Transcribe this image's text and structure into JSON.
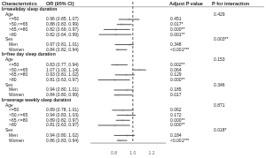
{
  "chart_data": {
    "type": "forest",
    "columns": [
      "Characteristics",
      "OR (95% CI)",
      "Adjust P value",
      "P for interaction"
    ],
    "sections": [
      {
        "header": "b=weekday sleep duration",
        "groups": [
          {
            "name": "Age",
            "p_interaction": "0.429",
            "categories": [
              "<=50",
              ">50,<=65",
              ">65,<=80",
              ">80"
            ],
            "values": [
              0.96,
              0.88,
              0.82,
              0.82
            ],
            "ci_lo": [
              0.85,
              0.83,
              0.69,
              0.64
            ],
            "ci_hi": [
              1.07,
              0.988,
              0.97,
              0.986
            ],
            "value_labels": [
              "0.96 (0.85, 1.07)",
              "0.88 (0.83, 0.99)",
              "0.82 (0.69, 0.97)",
              "0.82 (0.64, 0.99)"
            ],
            "p_values": [
              "0.451",
              "0.017*",
              "0.000**",
              "0.001**"
            ]
          },
          {
            "name": "Sex",
            "p_interaction": "0.003**",
            "categories": [
              "Men",
              "Women"
            ],
            "values": [
              0.97,
              0.84
            ],
            "ci_lo": [
              0.81,
              0.82
            ],
            "ci_hi": [
              1.01,
              0.94
            ],
            "value_labels": [
              "0.97 (0.81, 1.01)",
              "0.84 (0.82, 0.94)"
            ],
            "p_values": [
              "0.348",
              "<0.001***"
            ]
          }
        ]
      },
      {
        "header": "b=free day sleep duration",
        "groups": [
          {
            "name": "Age",
            "p_interaction": "0.153",
            "categories": [
              "<=50",
              ">50,<=65",
              ">65,<=80",
              ">80"
            ],
            "values": [
              0.83,
              1.07,
              0.93,
              0.81
            ],
            "ci_lo": [
              0.77,
              1.0,
              0.81,
              0.63
            ],
            "ci_hi": [
              0.944,
              1.14,
              1.02,
              0.97
            ],
            "value_labels": [
              "0.83 (0.77, 0.94)",
              "1.07 (1.00, 1.14)",
              "0.93 (0.81, 1.02)",
              "0.81 (0.63, 0.97)"
            ],
            "p_values": [
              "0.002**",
              "0.064",
              "0.129",
              "0.000**"
            ]
          },
          {
            "name": "Sex",
            "p_interaction": "0.346",
            "categories": [
              "Men",
              "Women"
            ],
            "values": [
              0.94,
              0.84
            ],
            "ci_lo": [
              0.8,
              0.8
            ],
            "ci_hi": [
              1.01,
              0.994
            ],
            "value_labels": [
              "0.94 (0.80, 1.01)",
              "0.84 (0.80, 0.99)"
            ],
            "p_values": [
              "0.185",
              "0.017"
            ]
          }
        ]
      },
      {
        "header": "b=average weekly sleep duration",
        "groups": [
          {
            "name": "Age",
            "p_interaction": "0.871",
            "categories": [
              "<=50",
              ">50,<=65",
              ">65,<=80",
              ">80"
            ],
            "values": [
              0.89,
              0.94,
              0.89,
              0.81
            ],
            "ci_lo": [
              0.78,
              0.83,
              0.82,
              0.63
            ],
            "ci_hi": [
              1.01,
              1.03,
              0.97,
              0.97
            ],
            "value_labels": [
              "0.89 (0.78, 1.01)",
              "0.94 (0.83, 1.03)",
              "0.89 (0.82, 0.97)",
              "0.81 (0.63, 0.97)"
            ],
            "p_values": [
              "0.062",
              "0.172",
              "0.000**",
              "0.000**"
            ]
          },
          {
            "name": "Sex",
            "p_interaction": "0.018*",
            "categories": [
              "Men",
              "Women"
            ],
            "values": [
              0.94,
              0.86
            ],
            "ci_lo": [
              0.8,
              0.83
            ],
            "ci_hi": [
              1.02,
              0.94
            ],
            "value_labels": [
              "0.94 (0.80, 1.02)",
              "0.86 (0.83, 0.94)"
            ],
            "p_values": [
              "0.184",
              "<0.001***"
            ]
          }
        ]
      }
    ],
    "xlim": [
      0.55,
      1.35
    ],
    "xticks": [
      0.8,
      {
        "value": 1.0,
        "label": "1.0"
      },
      1.2
    ],
    "ref_line": 1.0,
    "grid": false
  }
}
